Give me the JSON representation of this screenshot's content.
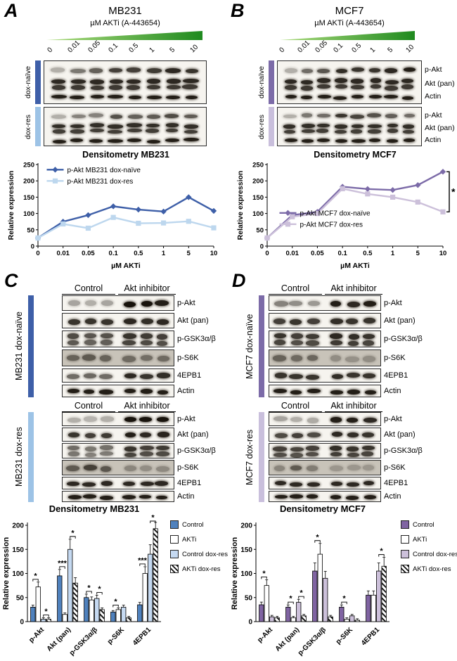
{
  "figure": {
    "wedge_colors": [
      "#AEDC7E",
      "#1F8A1F"
    ],
    "panels": {
      "A": {
        "letter": "A",
        "title": "MB231",
        "dose_axis_label": "µM AKTi (A-443654)",
        "doses": [
          "0",
          "0.01",
          "0.05",
          "0.1",
          "0.5",
          "1",
          "5",
          "10"
        ],
        "groups": [
          {
            "label": "dox-naïve",
            "color": "#3E5FA8"
          },
          {
            "label": "dox-res",
            "color": "#9DC3E6"
          }
        ]
      },
      "B": {
        "letter": "B",
        "title": "MCF7",
        "dose_axis_label": "µM AKTi (A-443654)",
        "doses": [
          "0",
          "0.01",
          "0.05",
          "0.1",
          "0.5",
          "1",
          "5",
          "10"
        ],
        "groups": [
          {
            "label": "dox-naïve",
            "color": "#7C6BA8"
          },
          {
            "label": "dox-res",
            "color": "#C9BFDC"
          }
        ],
        "band_labels": [
          "p-Akt",
          "Akt (pan)",
          "Actin"
        ]
      },
      "C": {
        "letter": "C",
        "column_headers": [
          "Control",
          "Akt inhibitor"
        ],
        "row_labels": [
          "p-Akt",
          "Akt (pan)",
          "p-GSK3α/β",
          "p-S6K",
          "4EPB1",
          "Actin"
        ],
        "groups": [
          {
            "label": "MB231 dox-naïve",
            "color": "#3E5FA8"
          },
          {
            "label": "MB231 dox-res",
            "color": "#9DC3E6"
          }
        ]
      },
      "D": {
        "letter": "D",
        "column_headers": [
          "Control",
          "Akt inhibitor"
        ],
        "row_labels": [
          "p-Akt",
          "Akt (pan)",
          "p-GSK3α/β",
          "p-S6K",
          "4EPB1",
          "Actin"
        ],
        "groups": [
          {
            "label": "MCF7 dox-naïve",
            "color": "#7C6BA8"
          },
          {
            "label": "MCF7 dox-res",
            "color": "#C9BFDC"
          }
        ]
      }
    }
  },
  "chart_data": [
    {
      "id": "mb231_line",
      "type": "line",
      "title": "Densitometry MB231",
      "xlabel": "µM AKTi",
      "ylabel": "Relative expression",
      "x_categories": [
        "0",
        "0.01",
        "0.05",
        "0.1",
        "0.5",
        "1",
        "5",
        "10"
      ],
      "ylim": [
        0,
        250
      ],
      "yticks": [
        0,
        50,
        100,
        150,
        200,
        250
      ],
      "grid": false,
      "legend": {
        "x": 0.05,
        "y": 0.02
      },
      "series": [
        {
          "name": "p-Akt MB231 dox-naïve",
          "color": "#3E5FA8",
          "marker": "diamond",
          "values": [
            25,
            75,
            95,
            122,
            112,
            106,
            150,
            108
          ]
        },
        {
          "name": "p-Akt MB231 dox-res",
          "color": "#BDD7EE",
          "marker": "square",
          "values": [
            25,
            68,
            55,
            88,
            70,
            71,
            76,
            56
          ]
        }
      ]
    },
    {
      "id": "mcf7_line",
      "type": "line",
      "title": "Densitometry MCF7",
      "xlabel": "µM AKTi",
      "ylabel": "Relative expression",
      "x_categories": [
        "0",
        "0.01",
        "0.05",
        "0.1",
        "0.5",
        "1",
        "5",
        "10"
      ],
      "ylim": [
        0,
        250
      ],
      "yticks": [
        0,
        50,
        100,
        150,
        200,
        250
      ],
      "grid": false,
      "legend": {
        "x": 0.07,
        "y": 0.55
      },
      "right_bracket": {
        "label": "*"
      },
      "series": [
        {
          "name": "p-Akt MCF7 dox-naïve",
          "color": "#7C6BA8",
          "marker": "diamond",
          "values": [
            25,
            95,
            105,
            182,
            175,
            172,
            187,
            228
          ]
        },
        {
          "name": "p-Akt MCF7 dox-res",
          "color": "#CCC0DA",
          "marker": "square",
          "values": [
            25,
            90,
            100,
            176,
            160,
            150,
            135,
            105
          ]
        }
      ]
    },
    {
      "id": "mb231_bar",
      "type": "bar",
      "title": "Densitometry MB231",
      "ylabel": "Relative expression",
      "categories": [
        "p-Akt",
        "Akt (pan)",
        "p-GSK3α/β",
        "p-S6K",
        "4EPB1"
      ],
      "ylim": [
        0,
        200
      ],
      "yticks": [
        0,
        50,
        100,
        150,
        200
      ],
      "error_frac": 0.14,
      "series": [
        {
          "name": "Control",
          "fill": "#4F81BD",
          "pattern": "solid",
          "values": [
            30,
            95,
            50,
            20,
            35
          ]
        },
        {
          "name": "AKTi",
          "fill": "#FFFFFF",
          "pattern": "solid",
          "values": [
            72,
            15,
            45,
            25,
            100
          ]
        },
        {
          "name": "Control dox-res",
          "fill": "#C5D9F1",
          "pattern": "solid",
          "values": [
            5,
            150,
            48,
            30,
            140
          ]
        },
        {
          "name": "AKTi dox-res",
          "fill": "#FFFFFF",
          "pattern": "stripe",
          "values": [
            5,
            80,
            25,
            8,
            193
          ]
        }
      ],
      "sig": [
        {
          "category": "p-Akt",
          "pairs": [
            [
              0,
              1
            ],
            [
              2,
              3
            ]
          ],
          "labels": [
            "*",
            "*"
          ]
        },
        {
          "category": "Akt (pan)",
          "pairs": [
            [
              0,
              1
            ],
            [
              2,
              3
            ]
          ],
          "labels": [
            "***",
            "*"
          ]
        },
        {
          "category": "p-GSK3α/β",
          "pairs": [
            [
              0,
              1
            ],
            [
              2,
              3
            ]
          ],
          "labels": [
            "*",
            "*"
          ]
        },
        {
          "category": "p-S6K",
          "pairs": [
            [
              0,
              1
            ]
          ],
          "labels": [
            "*"
          ]
        },
        {
          "category": "4EPB1",
          "pairs": [
            [
              0,
              1
            ],
            [
              2,
              3
            ]
          ],
          "labels": [
            "***",
            "*"
          ]
        }
      ]
    },
    {
      "id": "mcf7_bar",
      "type": "bar",
      "title": "Densitometry MCF7",
      "ylabel": "Relative expression",
      "categories": [
        "p-Akt",
        "Akt (pan)",
        "p-GSK3α/β",
        "p-S6K",
        "4EPB1"
      ],
      "ylim": [
        0,
        200
      ],
      "yticks": [
        0,
        50,
        100,
        150,
        200
      ],
      "error_frac": 0.16,
      "series": [
        {
          "name": "Control",
          "fill": "#8064A2",
          "pattern": "solid",
          "values": [
            35,
            30,
            105,
            30,
            55
          ]
        },
        {
          "name": "AKTi",
          "fill": "#FFFFFF",
          "pattern": "solid",
          "values": [
            75,
            8,
            140,
            5,
            55
          ]
        },
        {
          "name": "Control dox-res",
          "fill": "#CCC0DA",
          "pattern": "solid",
          "values": [
            10,
            40,
            90,
            12,
            105
          ]
        },
        {
          "name": "AKTi dox-res",
          "fill": "#FFFFFF",
          "pattern": "stripe",
          "values": [
            8,
            12,
            10,
            3,
            115
          ]
        }
      ],
      "sig": [
        {
          "category": "p-Akt",
          "pairs": [
            [
              0,
              1
            ]
          ],
          "labels": [
            "*"
          ]
        },
        {
          "category": "Akt (pan)",
          "pairs": [
            [
              0,
              1
            ],
            [
              2,
              3
            ]
          ],
          "labels": [
            "*",
            "*"
          ]
        },
        {
          "category": "p-GSK3α/β",
          "pairs": [
            [
              0,
              1
            ]
          ],
          "labels": [
            "*"
          ]
        },
        {
          "category": "p-S6K",
          "pairs": [
            [
              0,
              1
            ]
          ],
          "labels": [
            "*"
          ]
        },
        {
          "category": "4EPB1",
          "pairs": [
            [
              2,
              3
            ]
          ],
          "labels": [
            "*"
          ]
        }
      ]
    }
  ],
  "blots": {
    "A_naive": {
      "lanes": 8,
      "pad_x": 7,
      "pad_y": 4,
      "seed": 1,
      "rows": [
        {
          "h": 18,
          "i": [
            0.3,
            0.55,
            0.65,
            0.8,
            0.8,
            0.82,
            0.9,
            0.85
          ]
        },
        {
          "h": 22,
          "double": true,
          "i": 0.9
        },
        {
          "h": 14,
          "i": 0.95
        }
      ]
    },
    "A_res": {
      "lanes": 8,
      "pad_x": 7,
      "pad_y": 4,
      "seed": 2,
      "rows": [
        {
          "h": 16,
          "i": [
            0.3,
            0.5,
            0.5,
            0.72,
            0.65,
            0.68,
            0.75,
            0.68
          ]
        },
        {
          "h": 20,
          "double": true,
          "i": 0.88
        },
        {
          "h": 14,
          "i": 0.95
        }
      ]
    },
    "B_naive": {
      "lanes": 8,
      "pad_x": 6,
      "pad_y": 4,
      "seed": 3,
      "rows": [
        {
          "h": 18,
          "i": [
            0.3,
            0.6,
            0.7,
            0.88,
            0.85,
            0.85,
            0.9,
            0.95
          ]
        },
        {
          "h": 22,
          "double": true,
          "i": 0.9
        },
        {
          "h": 14,
          "i": 0.95
        }
      ]
    },
    "B_res": {
      "lanes": 8,
      "pad_x": 6,
      "pad_y": 4,
      "seed": 4,
      "rows": [
        {
          "h": 16,
          "i": [
            0.3,
            0.55,
            0.6,
            0.85,
            0.78,
            0.72,
            0.66,
            0.6
          ]
        },
        {
          "h": 20,
          "double": true,
          "i": 0.88
        },
        {
          "h": 14,
          "i": 0.95
        }
      ]
    },
    "C_naive": {
      "lanes": 6,
      "gap_after": 3,
      "gap_w": 10,
      "pad_x": 4,
      "strip_gap": 3,
      "seed": 5,
      "strips": [
        {
          "h": 22,
          "i": [
            0.35,
            0.3,
            0.35,
            1,
            1,
            0.95
          ]
        },
        {
          "h": 22,
          "i": [
            0.85,
            0.85,
            0.85,
            0.9,
            0.88,
            0.9
          ]
        },
        {
          "h": 24,
          "double": true,
          "i": [
            0.75,
            0.7,
            0.72,
            0.85,
            0.82,
            0.8
          ]
        },
        {
          "h": 24,
          "bg": "#c8c3b9",
          "i": [
            0.55,
            0.6,
            0.55,
            0.5,
            0.48,
            0.5
          ]
        },
        {
          "h": 20,
          "i": [
            0.6,
            0.62,
            0.6,
            0.9,
            0.85,
            0.88
          ]
        },
        {
          "h": 18,
          "i": 0.95
        }
      ]
    },
    "C_res": {
      "lanes": 6,
      "gap_after": 3,
      "gap_w": 10,
      "pad_x": 4,
      "strip_gap": 2,
      "seed": 6,
      "strips": [
        {
          "h": 20,
          "i": [
            0.3,
            0.28,
            0.3,
            1,
            1,
            1
          ]
        },
        {
          "h": 20,
          "i": [
            0.85,
            0.8,
            0.82,
            0.95,
            0.9,
            0.92
          ]
        },
        {
          "h": 22,
          "double": true,
          "i": [
            0.6,
            0.55,
            0.58,
            0.85,
            0.8,
            0.82
          ]
        },
        {
          "h": 22,
          "bg": "#c8c3b9",
          "i": [
            0.6,
            0.75,
            0.62,
            0.35,
            0.3,
            0.32
          ]
        },
        {
          "h": 18,
          "i": 0.9
        },
        {
          "h": 16,
          "i": 0.95
        }
      ]
    },
    "D_naive": {
      "lanes": 6,
      "gap_after": 3,
      "gap_w": 10,
      "pad_x": 4,
      "strip_gap": 3,
      "seed": 7,
      "strips": [
        {
          "h": 22,
          "i": [
            0.5,
            0.45,
            0.4,
            0.95,
            0.9,
            0.95
          ]
        },
        {
          "h": 22,
          "i": [
            0.8,
            0.85,
            0.8,
            0.88,
            0.85,
            0.85
          ]
        },
        {
          "h": 24,
          "double": true,
          "i": [
            0.85,
            0.8,
            0.82,
            0.9,
            0.88,
            0.85
          ]
        },
        {
          "h": 24,
          "bg": "#c8c3b9",
          "i": [
            0.55,
            0.5,
            0.52,
            0.3,
            0.28,
            0.3
          ]
        },
        {
          "h": 20,
          "i": [
            0.85,
            0.85,
            0.85,
            0.88,
            0.85,
            0.85
          ]
        },
        {
          "h": 18,
          "i": 0.95
        }
      ]
    },
    "D_res": {
      "lanes": 6,
      "gap_after": 3,
      "gap_w": 10,
      "pad_x": 4,
      "strip_gap": 2,
      "seed": 8,
      "strips": [
        {
          "h": 20,
          "i": [
            0.35,
            0.3,
            0.32,
            0.95,
            0.95,
            0.9
          ]
        },
        {
          "h": 20,
          "i": [
            0.75,
            0.8,
            0.75,
            0.9,
            0.88,
            0.85
          ]
        },
        {
          "h": 22,
          "double": true,
          "i": [
            0.8,
            0.78,
            0.8,
            0.88,
            0.85,
            0.85
          ]
        },
        {
          "h": 22,
          "bg": "#c8c3b9",
          "i": [
            0.35,
            0.6,
            0.4,
            0.25,
            0.25,
            0.25
          ]
        },
        {
          "h": 18,
          "i": 0.9
        },
        {
          "h": 16,
          "i": 0.95
        }
      ]
    }
  }
}
